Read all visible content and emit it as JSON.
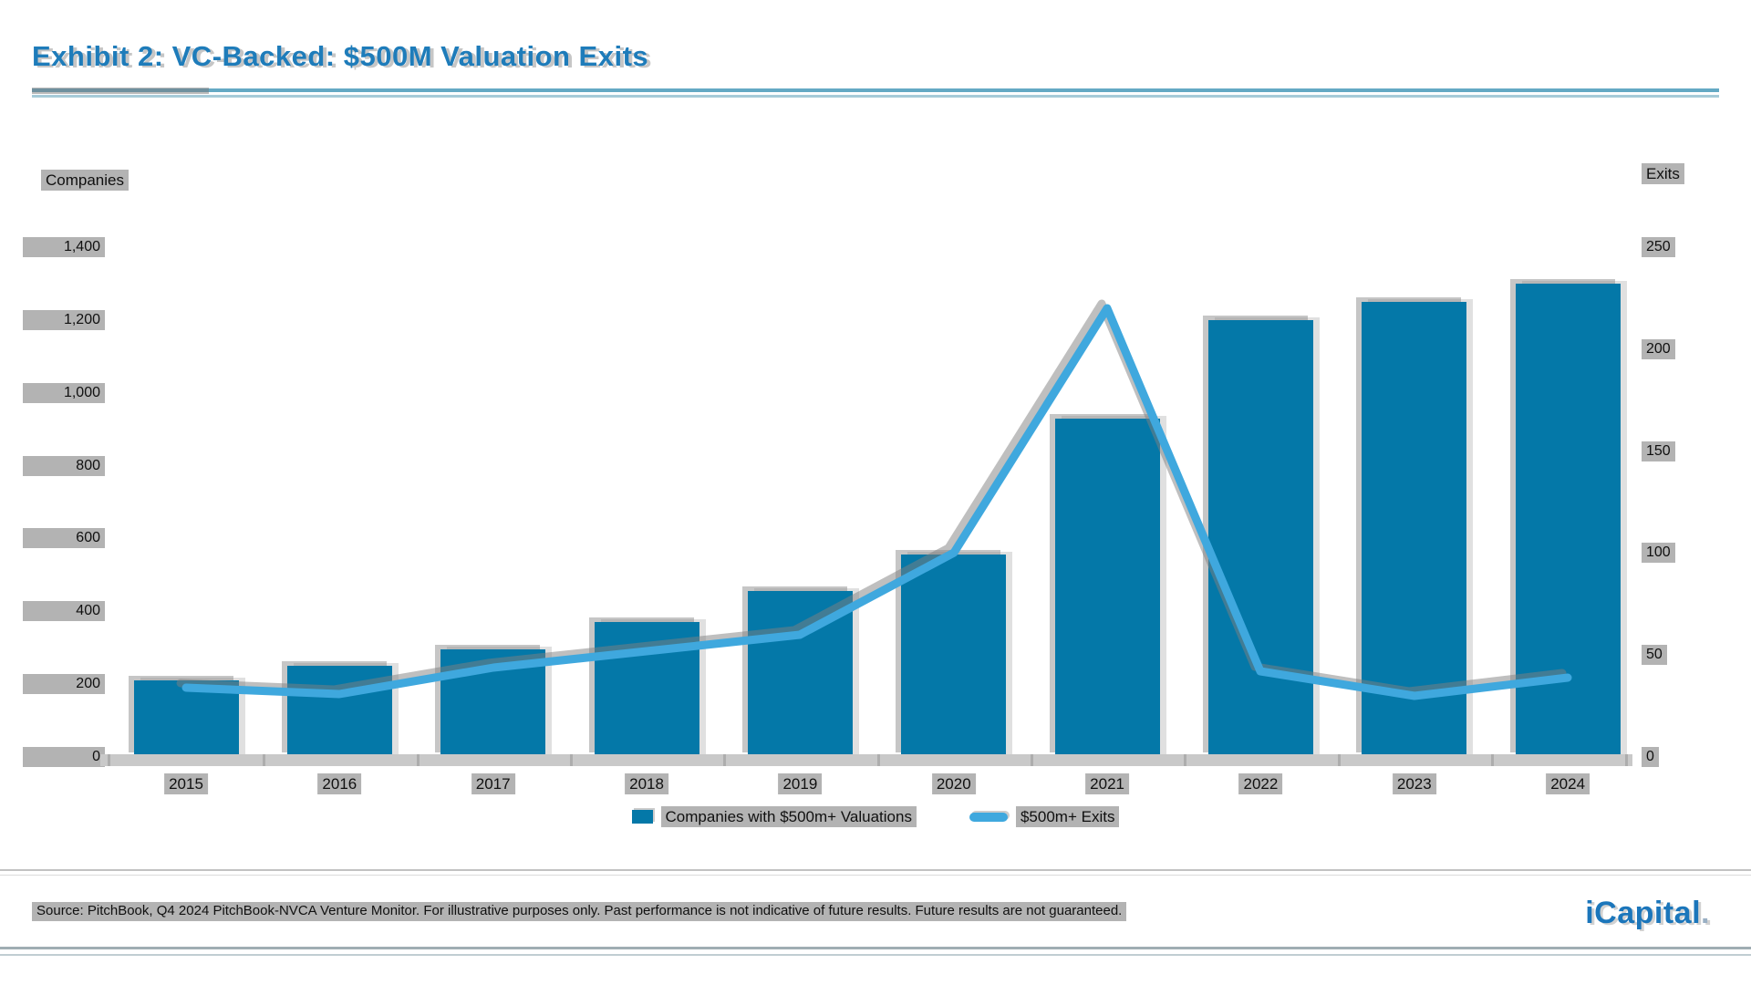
{
  "header": {
    "title": "Exhibit 2: VC-Backed: $500M Valuation Exits"
  },
  "chart_data": {
    "type": "bar",
    "subtype": "bar+line dual axis",
    "categories": [
      "2015",
      "2016",
      "2017",
      "2018",
      "2019",
      "2020",
      "2021",
      "2022",
      "2023",
      "2024"
    ],
    "series": [
      {
        "name": "Companies with $500m+ Valuations",
        "type": "bar",
        "axis": "left",
        "color": "#0478a8",
        "values": [
          210,
          250,
          295,
          370,
          455,
          555,
          930,
          1200,
          1250,
          1300
        ]
      },
      {
        "name": "$500m+ Exits",
        "type": "line",
        "axis": "right",
        "color": "#3fa8de",
        "values": [
          34,
          31,
          44,
          52,
          60,
          100,
          220,
          42,
          30,
          39
        ]
      }
    ],
    "left_axis": {
      "label": "Companies",
      "min": 0,
      "max": 1400,
      "tick_values": [
        1400,
        1200,
        1000,
        800,
        600,
        400,
        200,
        0
      ],
      "tick_labels": [
        "1,400",
        "1,200",
        "1,000",
        "800",
        "600",
        "400",
        "200",
        "0"
      ]
    },
    "right_axis": {
      "label": "Exits",
      "min": 0,
      "max": 250,
      "tick_values": [
        250,
        200,
        150,
        100,
        50,
        0
      ],
      "tick_labels": [
        "250",
        "200",
        "150",
        "100",
        "50",
        "0"
      ]
    },
    "grid": "off",
    "legend_position": "bottom"
  },
  "legend": {
    "items": [
      {
        "label": "Companies with $500m+ Valuations"
      },
      {
        "label": "$500m+ Exits"
      }
    ]
  },
  "footer": {
    "source": "Source: PitchBook, Q4 2024 PitchBook-NVCA Venture Monitor. For illustrative purposes only. Past performance is not indicative of future results. Future results are not guaranteed.",
    "logo": "iCapital",
    "logo_dot": "."
  },
  "colors": {
    "title": "#1e7cba",
    "bar": "#0478a8",
    "line": "#3fa8de",
    "axis_band": "#c9c9c9",
    "rule_blue": "#64a9c4"
  }
}
